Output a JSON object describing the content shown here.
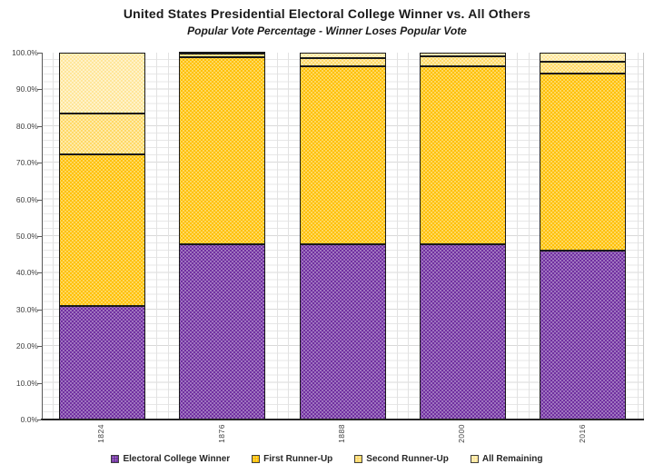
{
  "title": "United States Presidential Electoral College Winner vs. All Others",
  "subtitle": "Popular Vote Percentage - Winner Loses Popular Vote",
  "chart_data": {
    "type": "bar",
    "stacked": true,
    "normalized_to_100": true,
    "title": "United States Presidential Electoral College Winner vs. All Others",
    "subtitle": "Popular Vote Percentage - Winner Loses Popular Vote",
    "categories": [
      "1824",
      "1876",
      "1888",
      "2000",
      "2016"
    ],
    "series": [
      {
        "name": "Electoral College Winner",
        "color": "#7030A0",
        "dot": "rgba(255,255,255,0.42)",
        "values": [
          30.9,
          47.9,
          47.8,
          47.9,
          46.1
        ]
      },
      {
        "name": "First Runner-Up",
        "color": "#FFC000",
        "dot": "rgba(255,255,255,0.48)",
        "values": [
          41.4,
          50.9,
          48.6,
          48.4,
          48.2
        ]
      },
      {
        "name": "Second Runner-Up",
        "color": "#FFD966",
        "dot": "rgba(255,255,255,0.55)",
        "values": [
          11.2,
          1.0,
          2.2,
          2.7,
          3.3
        ]
      },
      {
        "name": "All Remaining",
        "color": "#FFE699",
        "dot": "rgba(255,255,255,0.6)",
        "values": [
          16.5,
          0.2,
          1.4,
          1.0,
          2.4
        ]
      }
    ],
    "xlabel": "",
    "ylabel": "",
    "ylim": [
      0,
      100
    ],
    "y_major_tick_pct": 10,
    "y_minor_grid_pct": 2,
    "y_tick_labels": [
      "0.0%",
      "10.0%",
      "20.0%",
      "30.0%",
      "40.0%",
      "50.0%",
      "60.0%",
      "70.0%",
      "80.0%",
      "90.0%",
      "100.0%"
    ],
    "grid": "minor horizontal and vertical, light gray",
    "legend_position": "bottom"
  }
}
